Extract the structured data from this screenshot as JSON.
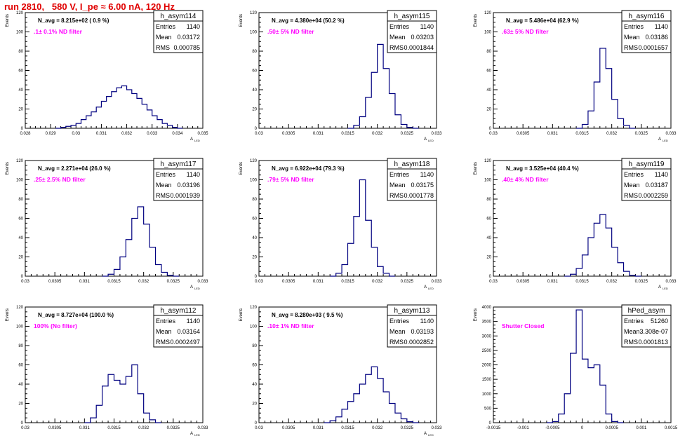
{
  "run_title": "run 2810,   580 V, I_pe ≈ 6.00 nA, 120 Hz",
  "colors": {
    "title": "#e00000",
    "navg": "#000000",
    "annotation": "#ff00ff",
    "histogram": "#000080",
    "frame": "#000000"
  },
  "chart_data": [
    {
      "type": "histogram",
      "name": "h_asym114",
      "navg_text": "N_avg = 8.215e+02 ( 0.9 %)",
      "annotation": ".1± 0.1% ND filter",
      "stats": [
        [
          "Entries",
          "1140"
        ],
        [
          "Mean",
          "0.03172"
        ],
        [
          "RMS",
          "0.000785"
        ]
      ],
      "xlabel": "A_{LED}",
      "ylabel": "Events",
      "xlim": [
        0.028,
        0.035
      ],
      "ylim": [
        0,
        120
      ],
      "x_ticks": [
        "0.028",
        "0.029",
        "0.03",
        "0.031",
        "0.032",
        "0.033",
        "0.034",
        "0.035"
      ],
      "y_ticks": [
        "0",
        "20",
        "40",
        "60",
        "80",
        "100",
        "120"
      ],
      "bins": [
        [
          0.0293,
          0
        ],
        [
          0.0295,
          1
        ],
        [
          0.0297,
          2
        ],
        [
          0.0299,
          3
        ],
        [
          0.0301,
          5
        ],
        [
          0.0303,
          9
        ],
        [
          0.0305,
          13
        ],
        [
          0.0307,
          17
        ],
        [
          0.0309,
          22
        ],
        [
          0.0311,
          28
        ],
        [
          0.0313,
          33
        ],
        [
          0.0315,
          38
        ],
        [
          0.0317,
          42
        ],
        [
          0.0319,
          44
        ],
        [
          0.0321,
          40
        ],
        [
          0.0323,
          36
        ],
        [
          0.0325,
          31
        ],
        [
          0.0327,
          25
        ],
        [
          0.0329,
          19
        ],
        [
          0.0331,
          13
        ],
        [
          0.0333,
          9
        ],
        [
          0.0335,
          5
        ],
        [
          0.0337,
          3
        ],
        [
          0.0339,
          1
        ],
        [
          0.0341,
          0
        ]
      ]
    },
    {
      "type": "histogram",
      "name": "h_asym115",
      "navg_text": "N_avg = 4.380e+04 (50.2 %)",
      "annotation": ".50± 5% ND filter",
      "stats": [
        [
          "Entries",
          "1140"
        ],
        [
          "Mean",
          "0.03203"
        ],
        [
          "RMS",
          "0.0001844"
        ]
      ],
      "xlabel": "A_{LED}",
      "ylabel": "Events",
      "xlim": [
        0.03,
        0.033
      ],
      "ylim": [
        0,
        120
      ],
      "x_ticks": [
        "0.03",
        "0.0305",
        "0.031",
        "0.0315",
        "0.032",
        "0.0325",
        "0.033"
      ],
      "y_ticks": [
        "0",
        "20",
        "40",
        "60",
        "80",
        "100",
        "120"
      ],
      "bins": [
        [
          0.03155,
          0
        ],
        [
          0.03165,
          3
        ],
        [
          0.03175,
          12
        ],
        [
          0.03185,
          32
        ],
        [
          0.03195,
          58
        ],
        [
          0.03205,
          87
        ],
        [
          0.03215,
          62
        ],
        [
          0.03225,
          36
        ],
        [
          0.03235,
          14
        ],
        [
          0.03245,
          4
        ],
        [
          0.03255,
          1
        ],
        [
          0.03265,
          0
        ]
      ]
    },
    {
      "type": "histogram",
      "name": "h_asym116",
      "navg_text": "N_avg = 5.486e+04 (62.9 %)",
      "annotation": ".63± 5% ND filter",
      "stats": [
        [
          "Entries",
          "1140"
        ],
        [
          "Mean",
          "0.03186"
        ],
        [
          "RMS",
          "0.0001657"
        ]
      ],
      "xlabel": "A_{LED}",
      "ylabel": "Events",
      "xlim": [
        0.03,
        0.033
      ],
      "ylim": [
        0,
        120
      ],
      "x_ticks": [
        "0.03",
        "0.0305",
        "0.031",
        "0.0315",
        "0.032",
        "0.0325",
        "0.033"
      ],
      "y_ticks": [
        "0",
        "20",
        "40",
        "60",
        "80",
        "100",
        "120"
      ],
      "bins": [
        [
          0.03145,
          0
        ],
        [
          0.03155,
          4
        ],
        [
          0.03165,
          18
        ],
        [
          0.03175,
          48
        ],
        [
          0.03185,
          83
        ],
        [
          0.03195,
          62
        ],
        [
          0.03205,
          30
        ],
        [
          0.03215,
          10
        ],
        [
          0.03225,
          3
        ],
        [
          0.03235,
          0
        ]
      ]
    },
    {
      "type": "histogram",
      "name": "h_asym117",
      "navg_text": "N_avg = 2.271e+04 (26.0 %)",
      "annotation": ".25± 2.5% ND filter",
      "stats": [
        [
          "Entries",
          "1140"
        ],
        [
          "Mean",
          "0.03196"
        ],
        [
          "RMS",
          "0.0001939"
        ]
      ],
      "xlabel": "A_{LED}",
      "ylabel": "Events",
      "xlim": [
        0.03,
        0.033
      ],
      "ylim": [
        0,
        120
      ],
      "x_ticks": [
        "0.03",
        "0.0305",
        "0.031",
        "0.0315",
        "0.032",
        "0.0325",
        "0.033"
      ],
      "y_ticks": [
        "0",
        "20",
        "40",
        "60",
        "80",
        "100",
        "120"
      ],
      "bins": [
        [
          0.03135,
          0
        ],
        [
          0.03145,
          2
        ],
        [
          0.03155,
          7
        ],
        [
          0.03165,
          20
        ],
        [
          0.03175,
          38
        ],
        [
          0.03185,
          60
        ],
        [
          0.03195,
          72
        ],
        [
          0.03205,
          54
        ],
        [
          0.03215,
          30
        ],
        [
          0.03225,
          12
        ],
        [
          0.03235,
          4
        ],
        [
          0.03245,
          1
        ],
        [
          0.03255,
          0
        ]
      ]
    },
    {
      "type": "histogram",
      "name": "h_asym118",
      "navg_text": "N_avg = 6.922e+04 (79.3 %)",
      "annotation": ".79± 5% ND filter",
      "stats": [
        [
          "Entries",
          "1140"
        ],
        [
          "Mean",
          "0.03175"
        ],
        [
          "RMS",
          "0.0001778"
        ]
      ],
      "xlabel": "A_{LED}",
      "ylabel": "Events",
      "xlim": [
        0.03,
        0.033
      ],
      "ylim": [
        0,
        120
      ],
      "x_ticks": [
        "0.03",
        "0.0305",
        "0.031",
        "0.0315",
        "0.032",
        "0.0325",
        "0.033"
      ],
      "y_ticks": [
        "0",
        "20",
        "40",
        "60",
        "80",
        "100",
        "120"
      ],
      "bins": [
        [
          0.03125,
          0
        ],
        [
          0.03135,
          3
        ],
        [
          0.03145,
          12
        ],
        [
          0.03155,
          34
        ],
        [
          0.03165,
          62
        ],
        [
          0.03175,
          100
        ],
        [
          0.03185,
          58
        ],
        [
          0.03195,
          30
        ],
        [
          0.03205,
          10
        ],
        [
          0.03215,
          3
        ],
        [
          0.03225,
          0
        ]
      ]
    },
    {
      "type": "histogram",
      "name": "h_asym119",
      "navg_text": "N_avg = 3.525e+04 (40.4 %)",
      "annotation": ".40± 4% ND filter",
      "stats": [
        [
          "Entries",
          "1140"
        ],
        [
          "Mean",
          "0.03187"
        ],
        [
          "RMS",
          "0.0002259"
        ]
      ],
      "xlabel": "A_{LED}",
      "ylabel": "Events",
      "xlim": [
        0.03,
        0.033
      ],
      "ylim": [
        0,
        120
      ],
      "x_ticks": [
        "0.03",
        "0.0305",
        "0.031",
        "0.0315",
        "0.032",
        "0.0325",
        "0.033"
      ],
      "y_ticks": [
        "0",
        "20",
        "40",
        "60",
        "80",
        "100",
        "120"
      ],
      "bins": [
        [
          0.03125,
          0
        ],
        [
          0.03135,
          2
        ],
        [
          0.03145,
          8
        ],
        [
          0.03155,
          22
        ],
        [
          0.03165,
          40
        ],
        [
          0.03175,
          55
        ],
        [
          0.03185,
          64
        ],
        [
          0.03195,
          50
        ],
        [
          0.03205,
          30
        ],
        [
          0.03215,
          14
        ],
        [
          0.03225,
          5
        ],
        [
          0.03235,
          1
        ],
        [
          0.03245,
          0
        ]
      ]
    },
    {
      "type": "histogram",
      "name": "h_asym112",
      "navg_text": "N_avg = 8.727e+04 (100.0 %)",
      "annotation": "100% (No filter)",
      "stats": [
        [
          "Entries",
          "1140"
        ],
        [
          "Mean",
          "0.03164"
        ],
        [
          "RMS",
          "0.0002497"
        ]
      ],
      "xlabel": "A_{LED}",
      "ylabel": "Events",
      "xlim": [
        0.03,
        0.033
      ],
      "ylim": [
        0,
        120
      ],
      "x_ticks": [
        "0.03",
        "0.0305",
        "0.031",
        "0.0315",
        "0.032",
        "0.0325",
        "0.033"
      ],
      "y_ticks": [
        "0",
        "20",
        "40",
        "60",
        "80",
        "100",
        "120"
      ],
      "bins": [
        [
          0.03105,
          0
        ],
        [
          0.03115,
          5
        ],
        [
          0.03125,
          18
        ],
        [
          0.03135,
          38
        ],
        [
          0.03145,
          50
        ],
        [
          0.03155,
          44
        ],
        [
          0.03165,
          40
        ],
        [
          0.03175,
          48
        ],
        [
          0.03185,
          60
        ],
        [
          0.03195,
          30
        ],
        [
          0.03205,
          10
        ],
        [
          0.03215,
          3
        ],
        [
          0.03225,
          0
        ]
      ]
    },
    {
      "type": "histogram",
      "name": "h_asym113",
      "navg_text": "N_avg = 8.280e+03 ( 9.5 %)",
      "annotation": ".10± 1% ND filter",
      "stats": [
        [
          "Entries",
          "1140"
        ],
        [
          "Mean",
          "0.03193"
        ],
        [
          "RMS",
          "0.0002852"
        ]
      ],
      "xlabel": "A_{LED}",
      "ylabel": "Events",
      "xlim": [
        0.03,
        0.033
      ],
      "ylim": [
        0,
        120
      ],
      "x_ticks": [
        "0.03",
        "0.0305",
        "0.031",
        "0.0315",
        "0.032",
        "0.0325",
        "0.033"
      ],
      "y_ticks": [
        "0",
        "20",
        "40",
        "60",
        "80",
        "100",
        "120"
      ],
      "bins": [
        [
          0.03115,
          0
        ],
        [
          0.03125,
          2
        ],
        [
          0.03135,
          6
        ],
        [
          0.03145,
          14
        ],
        [
          0.03155,
          22
        ],
        [
          0.03165,
          30
        ],
        [
          0.03175,
          40
        ],
        [
          0.03185,
          50
        ],
        [
          0.03195,
          58
        ],
        [
          0.03205,
          46
        ],
        [
          0.03215,
          32
        ],
        [
          0.03225,
          20
        ],
        [
          0.03235,
          10
        ],
        [
          0.03245,
          4
        ],
        [
          0.03255,
          1
        ],
        [
          0.03265,
          0
        ]
      ]
    },
    {
      "type": "histogram",
      "name": "hPed_asym",
      "navg_text": "",
      "annotation": "Shutter Closed",
      "stats": [
        [
          "Entries",
          "51260"
        ],
        [
          "Mean",
          "3.308e-07"
        ],
        [
          "RMS",
          "0.0001813"
        ]
      ],
      "xlabel": "",
      "ylabel": "Events",
      "xlim": [
        -0.0015,
        0.0015
      ],
      "ylim": [
        0,
        4000
      ],
      "x_ticks": [
        "-0.0015",
        "-0.001",
        "-0.0005",
        "0",
        "0.0005",
        "0.001",
        "0.0015"
      ],
      "y_ticks": [
        "0",
        "500",
        "1000",
        "1500",
        "2000",
        "2500",
        "3000",
        "3500",
        "4000"
      ],
      "bins": [
        [
          -0.00055,
          0
        ],
        [
          -0.00045,
          40
        ],
        [
          -0.00035,
          300
        ],
        [
          -0.00025,
          1000
        ],
        [
          -0.00015,
          2400
        ],
        [
          -5e-05,
          3900
        ],
        [
          5e-05,
          2200
        ],
        [
          0.00015,
          1900
        ],
        [
          0.00025,
          2000
        ],
        [
          0.00035,
          1300
        ],
        [
          0.00045,
          300
        ],
        [
          0.00055,
          40
        ],
        [
          0.00065,
          0
        ]
      ]
    }
  ]
}
